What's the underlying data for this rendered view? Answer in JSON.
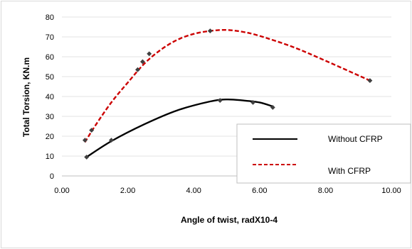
{
  "chart_data": {
    "type": "scatter",
    "title": "",
    "xlabel": "Angle of twist, radX10-4",
    "ylabel": "Total Torsion, KN.m",
    "xlim": [
      0,
      10
    ],
    "ylim": [
      0,
      80
    ],
    "x_ticks": [
      "0.00",
      "2.00",
      "4.00",
      "6.00",
      "8.00",
      "10.00"
    ],
    "y_ticks": [
      "0",
      "10",
      "20",
      "30",
      "40",
      "50",
      "60",
      "70",
      "80"
    ],
    "grid": "horizontal",
    "legend_position": "lower-right",
    "series": [
      {
        "name": "Without CFRP",
        "color": "#000000",
        "line_style": "solid",
        "points": [
          {
            "x": 0.75,
            "y": 9.5
          },
          {
            "x": 1.5,
            "y": 18
          },
          {
            "x": 4.8,
            "y": 38
          },
          {
            "x": 5.8,
            "y": 37
          },
          {
            "x": 6.4,
            "y": 34.5
          }
        ],
        "trendline": [
          {
            "x": 0.75,
            "y": 9.5
          },
          {
            "x": 1.5,
            "y": 17.5
          },
          {
            "x": 2.5,
            "y": 26
          },
          {
            "x": 3.5,
            "y": 33
          },
          {
            "x": 4.5,
            "y": 37.5
          },
          {
            "x": 5.0,
            "y": 38.5
          },
          {
            "x": 5.5,
            "y": 38
          },
          {
            "x": 6.0,
            "y": 37
          },
          {
            "x": 6.4,
            "y": 35
          }
        ]
      },
      {
        "name": "With CFRP",
        "color": "#cc0000",
        "line_style": "dashed",
        "points": [
          {
            "x": 0.7,
            "y": 18
          },
          {
            "x": 0.9,
            "y": 23
          },
          {
            "x": 2.3,
            "y": 53.5
          },
          {
            "x": 2.45,
            "y": 57.5
          },
          {
            "x": 2.65,
            "y": 61.5
          },
          {
            "x": 4.5,
            "y": 73
          },
          {
            "x": 9.35,
            "y": 48
          }
        ],
        "trendline": [
          {
            "x": 0.7,
            "y": 17
          },
          {
            "x": 1.0,
            "y": 25
          },
          {
            "x": 1.5,
            "y": 37
          },
          {
            "x": 2.0,
            "y": 47
          },
          {
            "x": 2.5,
            "y": 56.5
          },
          {
            "x": 3.0,
            "y": 63.5
          },
          {
            "x": 3.5,
            "y": 68.5
          },
          {
            "x": 4.0,
            "y": 71.5
          },
          {
            "x": 4.5,
            "y": 73
          },
          {
            "x": 5.0,
            "y": 73.5
          },
          {
            "x": 5.5,
            "y": 72.5
          },
          {
            "x": 6.0,
            "y": 70.5
          },
          {
            "x": 7.0,
            "y": 65
          },
          {
            "x": 8.0,
            "y": 58
          },
          {
            "x": 9.35,
            "y": 48
          }
        ]
      }
    ]
  }
}
